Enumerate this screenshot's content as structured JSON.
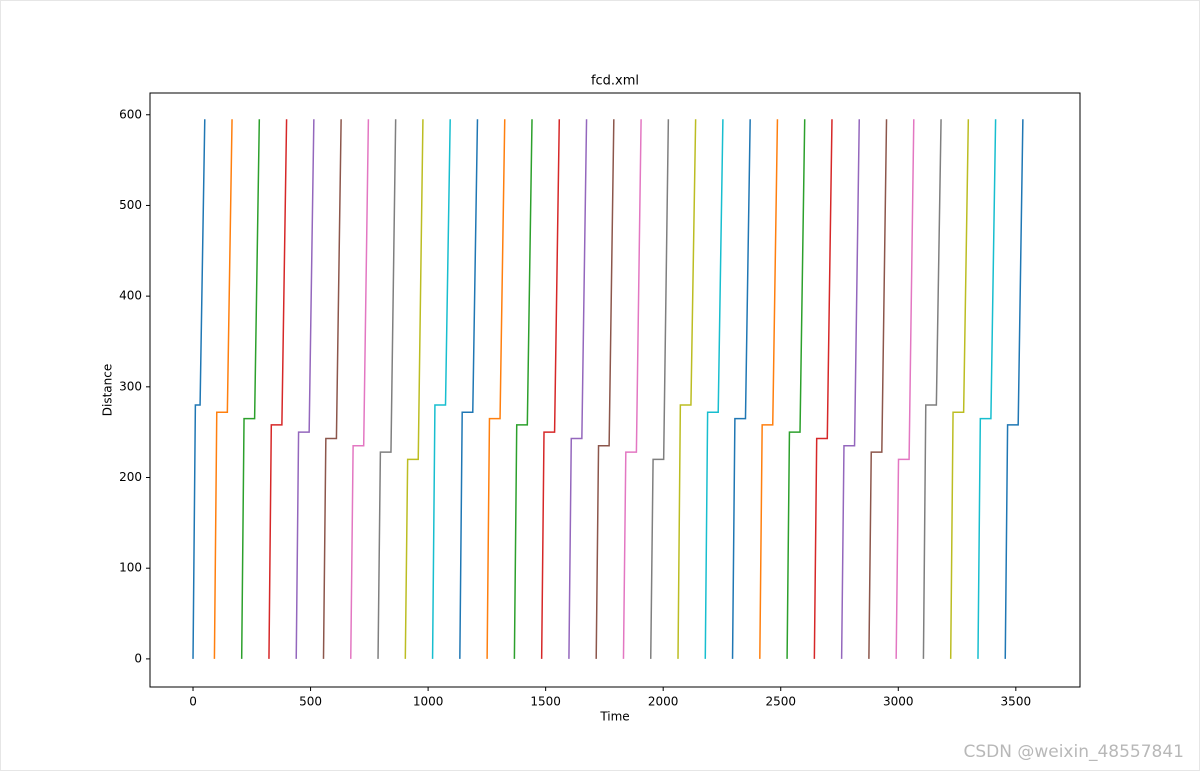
{
  "chart_data": {
    "type": "line",
    "title": "fcd.xml",
    "x_label": "Time",
    "y_label": "Distance",
    "xlim": [
      -183,
      3773
    ],
    "ylim": [
      -31,
      624
    ],
    "xticks": [
      0,
      500,
      1000,
      1500,
      2000,
      2500,
      3000,
      3500
    ],
    "yticks": [
      0,
      100,
      200,
      300,
      400,
      500,
      600
    ],
    "grid": false,
    "series": [
      {
        "color": "#1f77b4",
        "x": [
          0,
          10,
          30,
          50
        ],
        "values": [
          0,
          280,
          280,
          595
        ]
      },
      {
        "color": "#ff7f0e",
        "x": [
          91,
          101,
          146,
          166
        ],
        "values": [
          0,
          272,
          272,
          595
        ]
      },
      {
        "color": "#2ca02c",
        "x": [
          207,
          217,
          262,
          282
        ],
        "values": [
          0,
          265,
          265,
          595
        ]
      },
      {
        "color": "#d62728",
        "x": [
          323,
          333,
          378,
          398
        ],
        "values": [
          0,
          258,
          258,
          595
        ]
      },
      {
        "color": "#9467bd",
        "x": [
          439,
          449,
          494,
          514
        ],
        "values": [
          0,
          250,
          250,
          595
        ]
      },
      {
        "color": "#8c564b",
        "x": [
          555,
          565,
          610,
          630
        ],
        "values": [
          0,
          243,
          243,
          595
        ]
      },
      {
        "color": "#e377c2",
        "x": [
          671,
          681,
          726,
          746
        ],
        "values": [
          0,
          235,
          235,
          595
        ]
      },
      {
        "color": "#7f7f7f",
        "x": [
          787,
          797,
          842,
          862
        ],
        "values": [
          0,
          228,
          228,
          595
        ]
      },
      {
        "color": "#bcbd22",
        "x": [
          903,
          913,
          958,
          978
        ],
        "values": [
          0,
          220,
          220,
          595
        ]
      },
      {
        "color": "#17becf",
        "x": [
          1019,
          1029,
          1074,
          1094
        ],
        "values": [
          0,
          280,
          280,
          595
        ]
      },
      {
        "color": "#1f77b4",
        "x": [
          1135,
          1145,
          1190,
          1210
        ],
        "values": [
          0,
          272,
          272,
          595
        ]
      },
      {
        "color": "#ff7f0e",
        "x": [
          1251,
          1261,
          1306,
          1326
        ],
        "values": [
          0,
          265,
          265,
          595
        ]
      },
      {
        "color": "#2ca02c",
        "x": [
          1367,
          1377,
          1422,
          1442
        ],
        "values": [
          0,
          258,
          258,
          595
        ]
      },
      {
        "color": "#d62728",
        "x": [
          1483,
          1493,
          1538,
          1558
        ],
        "values": [
          0,
          250,
          250,
          595
        ]
      },
      {
        "color": "#9467bd",
        "x": [
          1599,
          1609,
          1654,
          1674
        ],
        "values": [
          0,
          243,
          243,
          595
        ]
      },
      {
        "color": "#8c564b",
        "x": [
          1715,
          1725,
          1770,
          1790
        ],
        "values": [
          0,
          235,
          235,
          595
        ]
      },
      {
        "color": "#e377c2",
        "x": [
          1831,
          1841,
          1886,
          1906
        ],
        "values": [
          0,
          228,
          228,
          595
        ]
      },
      {
        "color": "#7f7f7f",
        "x": [
          1947,
          1957,
          2002,
          2022
        ],
        "values": [
          0,
          220,
          220,
          595
        ]
      },
      {
        "color": "#bcbd22",
        "x": [
          2063,
          2073,
          2118,
          2138
        ],
        "values": [
          0,
          280,
          280,
          595
        ]
      },
      {
        "color": "#17becf",
        "x": [
          2179,
          2189,
          2234,
          2254
        ],
        "values": [
          0,
          272,
          272,
          595
        ]
      },
      {
        "color": "#1f77b4",
        "x": [
          2295,
          2305,
          2350,
          2370
        ],
        "values": [
          0,
          265,
          265,
          595
        ]
      },
      {
        "color": "#ff7f0e",
        "x": [
          2411,
          2421,
          2466,
          2486
        ],
        "values": [
          0,
          258,
          258,
          595
        ]
      },
      {
        "color": "#2ca02c",
        "x": [
          2527,
          2537,
          2582,
          2602
        ],
        "values": [
          0,
          250,
          250,
          595
        ]
      },
      {
        "color": "#d62728",
        "x": [
          2643,
          2653,
          2698,
          2718
        ],
        "values": [
          0,
          243,
          243,
          595
        ]
      },
      {
        "color": "#9467bd",
        "x": [
          2759,
          2769,
          2814,
          2834
        ],
        "values": [
          0,
          235,
          235,
          595
        ]
      },
      {
        "color": "#8c564b",
        "x": [
          2875,
          2885,
          2930,
          2950
        ],
        "values": [
          0,
          228,
          228,
          595
        ]
      },
      {
        "color": "#e377c2",
        "x": [
          2991,
          3001,
          3046,
          3066
        ],
        "values": [
          0,
          220,
          220,
          595
        ]
      },
      {
        "color": "#7f7f7f",
        "x": [
          3107,
          3117,
          3162,
          3182
        ],
        "values": [
          0,
          280,
          280,
          595
        ]
      },
      {
        "color": "#bcbd22",
        "x": [
          3223,
          3233,
          3278,
          3298
        ],
        "values": [
          0,
          272,
          272,
          595
        ]
      },
      {
        "color": "#17becf",
        "x": [
          3339,
          3349,
          3394,
          3414
        ],
        "values": [
          0,
          265,
          265,
          595
        ]
      },
      {
        "color": "#1f77b4",
        "x": [
          3455,
          3465,
          3510,
          3530
        ],
        "values": [
          0,
          258,
          258,
          595
        ]
      }
    ]
  },
  "watermark": "CSDN @weixin_48557841"
}
